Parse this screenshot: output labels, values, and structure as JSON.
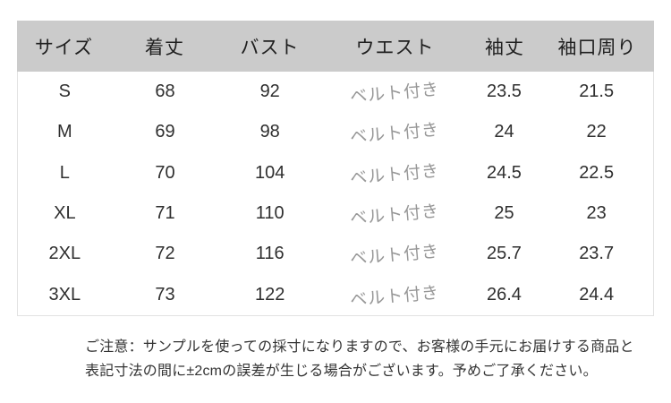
{
  "table": {
    "headers": [
      "サイズ",
      "着丈",
      "バスト",
      "ウエスト",
      "袖丈",
      "袖口周り"
    ],
    "rows": [
      {
        "size": "S",
        "length": "68",
        "bust": "92",
        "waist": "ベルト付き",
        "sleeve": "23.5",
        "cuff": "21.5"
      },
      {
        "size": "M",
        "length": "69",
        "bust": "98",
        "waist": "ベルト付き",
        "sleeve": "24",
        "cuff": "22"
      },
      {
        "size": "L",
        "length": "70",
        "bust": "104",
        "waist": "ベルト付き",
        "sleeve": "24.5",
        "cuff": "22.5"
      },
      {
        "size": "XL",
        "length": "71",
        "bust": "110",
        "waist": "ベルト付き",
        "sleeve": "25",
        "cuff": "23"
      },
      {
        "size": "2XL",
        "length": "72",
        "bust": "116",
        "waist": "ベルト付き",
        "sleeve": "25.7",
        "cuff": "23.7"
      },
      {
        "size": "3XL",
        "length": "73",
        "bust": "122",
        "waist": "ベルト付き",
        "sleeve": "26.4",
        "cuff": "24.4"
      }
    ]
  },
  "note": {
    "line1": "ご注意：サンプルを使っての採寸になりますので、お客様の手元にお届けする商品と",
    "line2": "表記寸法の間に±2cmの誤差が生じる場合がございます。予めご了承ください。"
  },
  "colors": {
    "header_bg": "#cbcbcb",
    "body_text": "#2f2f2f",
    "belt_text": "#979797",
    "border": "#e2e2e2"
  }
}
